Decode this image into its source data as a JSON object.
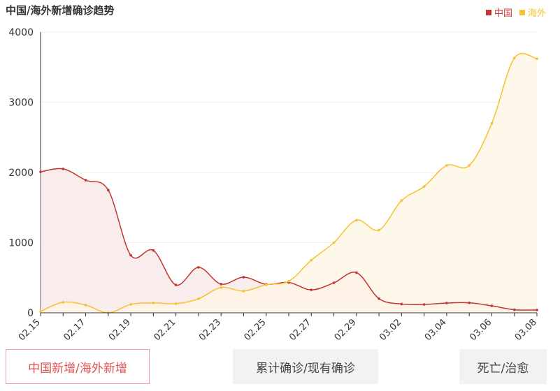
{
  "title": "中国/海外新增确诊趋势",
  "legend": {
    "china_label": "中国",
    "overseas_label": "海外"
  },
  "colors": {
    "china": "#c23531",
    "overseas": "#f7c12f",
    "china_fill": "#f7e5e5",
    "overseas_fill": "#fef6e4"
  },
  "tabs": {
    "new": "中国新增/海外新增",
    "cumulative": "累计确诊/现有确诊",
    "death": "死亡/治愈"
  },
  "chart_data": {
    "type": "area",
    "x": [
      "02.15",
      "02.16",
      "02.17",
      "02.18",
      "02.19",
      "02.20",
      "02.21",
      "02.22",
      "02.23",
      "02.24",
      "02.25",
      "02.26",
      "02.27",
      "02.28",
      "02.29",
      "03.01",
      "03.02",
      "03.03",
      "03.04",
      "03.05",
      "03.06",
      "03.07",
      "03.08"
    ],
    "x_tick_labels": [
      "02.15",
      "02.17",
      "02.19",
      "02.21",
      "02.23",
      "02.25",
      "02.27",
      "02.29",
      "03.02",
      "03.04",
      "03.06",
      "03.08"
    ],
    "series": [
      {
        "name": "中国",
        "values": [
          2009,
          2051,
          1890,
          1749,
          820,
          889,
          397,
          648,
          409,
          508,
          406,
          433,
          327,
          427,
          573,
          202,
          125,
          119,
          139,
          143,
          99,
          44,
          40
        ]
      },
      {
        "name": "海外",
        "values": [
          20,
          150,
          110,
          0,
          120,
          140,
          130,
          200,
          360,
          310,
          400,
          450,
          750,
          1000,
          1320,
          1180,
          1600,
          1800,
          2100,
          2100,
          2700,
          3630,
          3620
        ]
      }
    ],
    "ylim": [
      0,
      4000
    ],
    "y_ticks": [
      0,
      1000,
      2000,
      3000,
      4000
    ],
    "legend_position": "top-right",
    "grid": true
  }
}
